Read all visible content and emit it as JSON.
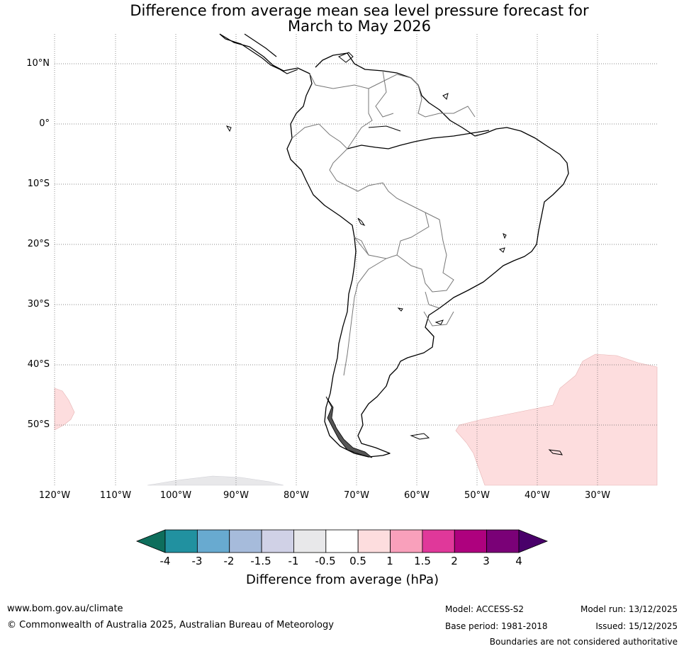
{
  "title": {
    "line1": "Difference from average mean sea level pressure forecast for",
    "line2": "March to May 2026"
  },
  "axes": {
    "lat_labels": [
      "10°N",
      "0°",
      "10°S",
      "20°S",
      "30°S",
      "40°S",
      "50°S"
    ],
    "lon_labels": [
      "120°W",
      "110°W",
      "100°W",
      "90°W",
      "80°W",
      "70°W",
      "60°W",
      "50°W",
      "40°W",
      "30°W"
    ]
  },
  "colorbar": {
    "ticks": [
      "-4",
      "-3",
      "-2",
      "-1.5",
      "-1",
      "-0.5",
      "0.5",
      "1",
      "1.5",
      "2",
      "3",
      "4"
    ],
    "colors": [
      "#0e6e5c",
      "#2191a0",
      "#68aad0",
      "#a6bbdb",
      "#d0d1e6",
      "#e8e8ea",
      "#ffffff",
      "#fdddde",
      "#f9a0bb",
      "#e0389a",
      "#ae017e",
      "#7a0177",
      "#49006a"
    ],
    "title": "Difference from average (hPa)"
  },
  "footer": {
    "url": "www.bom.gov.au/climate",
    "copyright": "© Commonwealth of Australia 2025, Australian Bureau of Meteorology",
    "model": "Model: ACCESS-S2",
    "base_period": "Base period: 1981-2018",
    "model_run": "Model run: 13/12/2025",
    "issued": "Issued: 15/12/2025",
    "disclaimer": "Boundaries are not considered authoritative"
  }
}
